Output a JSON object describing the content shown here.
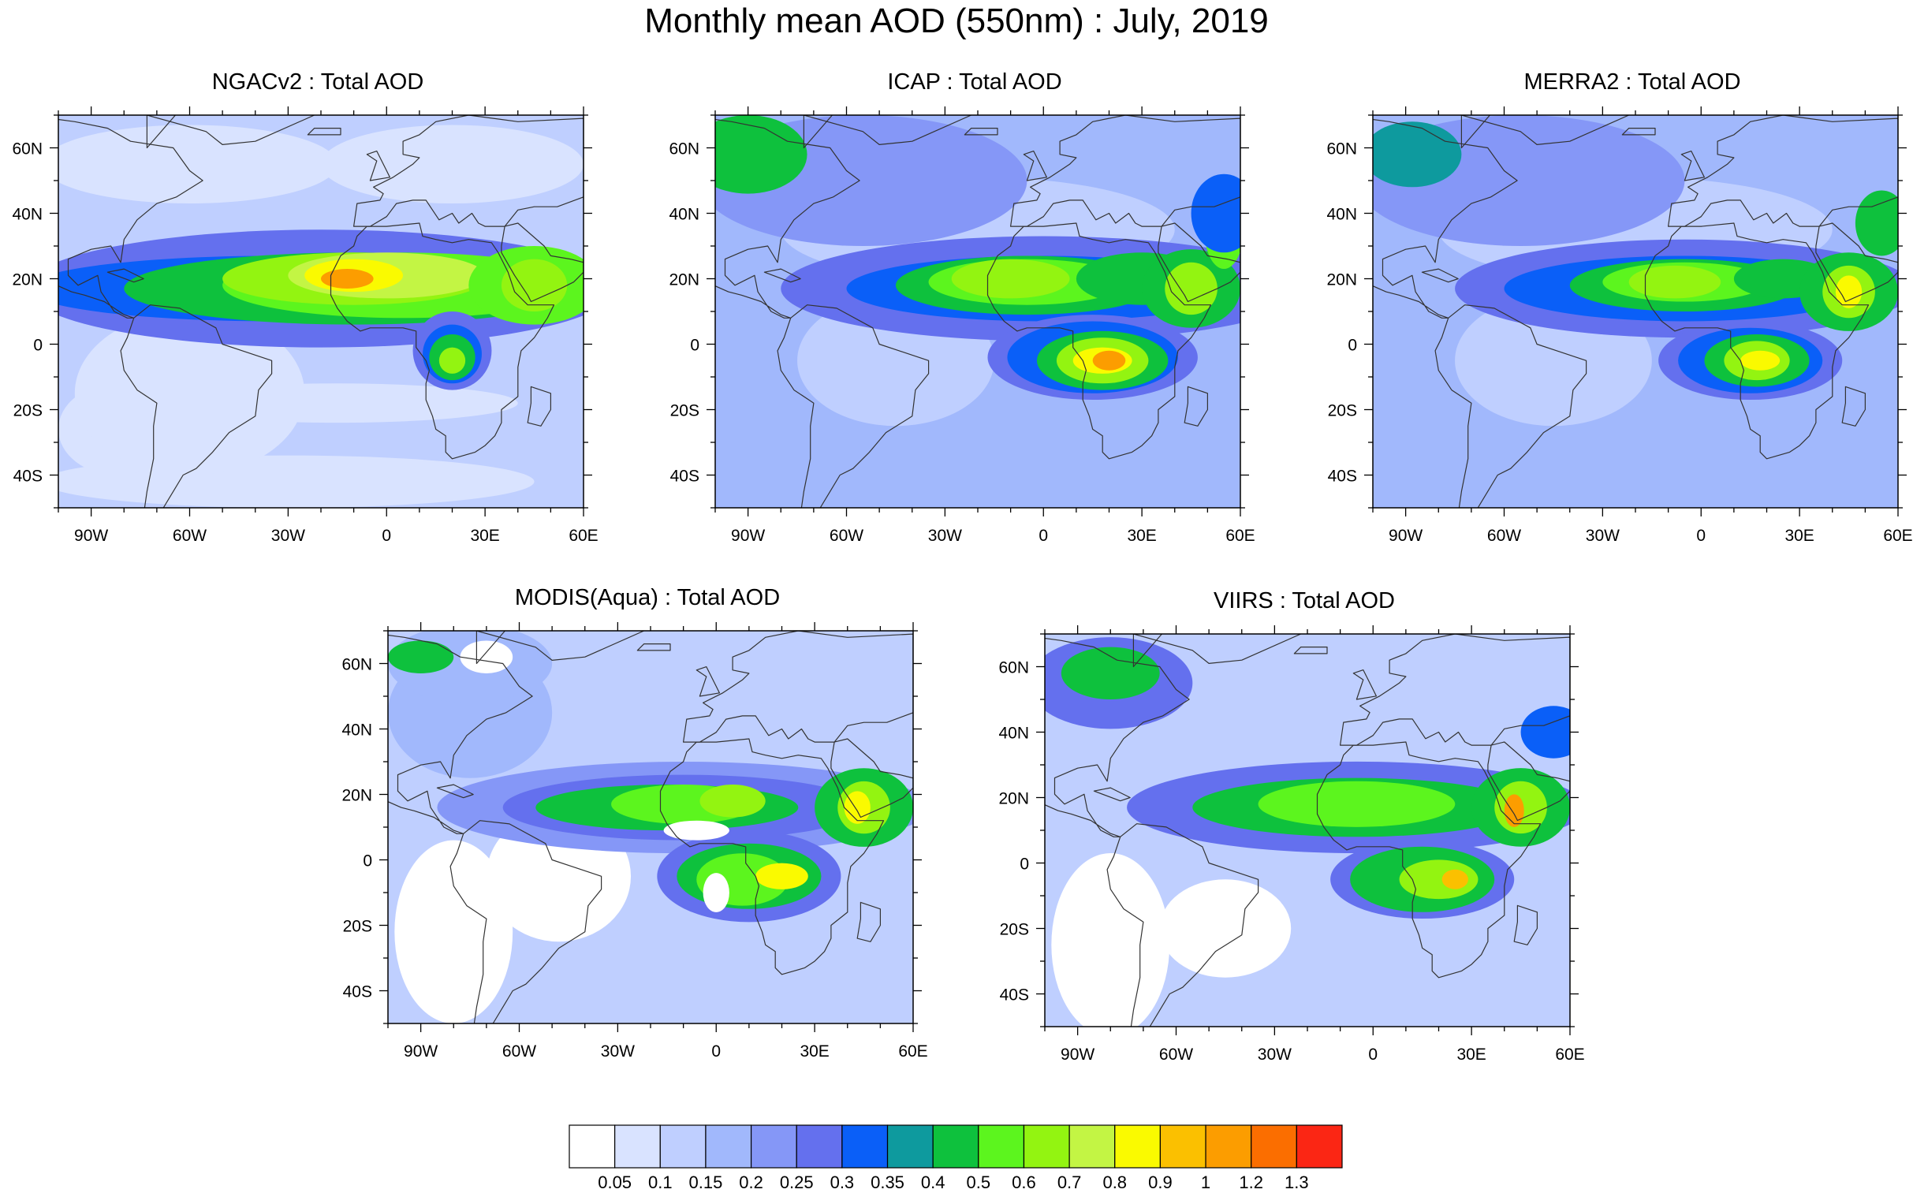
{
  "title": "Monthly mean AOD (550nm) : July, 2019",
  "axes": {
    "lon_labels": [
      "90W",
      "60W",
      "30W",
      "0",
      "30E",
      "60E"
    ],
    "lat_labels": [
      "60N",
      "40N",
      "20N",
      "0",
      "20S",
      "40S"
    ],
    "lon_range": [
      -100,
      60
    ],
    "lat_range": [
      -50,
      70
    ]
  },
  "panels": [
    {
      "title": "NGACv2 : Total AOD",
      "pattern": "ngac"
    },
    {
      "title": "ICAP : Total AOD",
      "pattern": "icap"
    },
    {
      "title": "MERRA2 : Total AOD",
      "pattern": "merra"
    },
    {
      "title": "MODIS(Aqua) : Total AOD",
      "pattern": "modis"
    },
    {
      "title": "VIIRS : Total AOD",
      "pattern": "viirs"
    }
  ],
  "colorbar": {
    "colors": [
      "#ffffff",
      "#d9e3ff",
      "#bfcfff",
      "#a1b8fc",
      "#8597f7",
      "#6470ee",
      "#0a5ff8",
      "#0e9a9e",
      "#0ec13d",
      "#5cf51e",
      "#93f411",
      "#c3f544",
      "#fafa00",
      "#fbc000",
      "#fc9d00",
      "#fb6e00",
      "#fb2614"
    ],
    "labels": [
      "0.05",
      "0.1",
      "0.15",
      "0.2",
      "0.25",
      "0.3",
      "0.35",
      "0.4",
      "0.5",
      "0.6",
      "0.7",
      "0.8",
      "0.9",
      "1",
      "1.2",
      "1.3"
    ]
  }
}
